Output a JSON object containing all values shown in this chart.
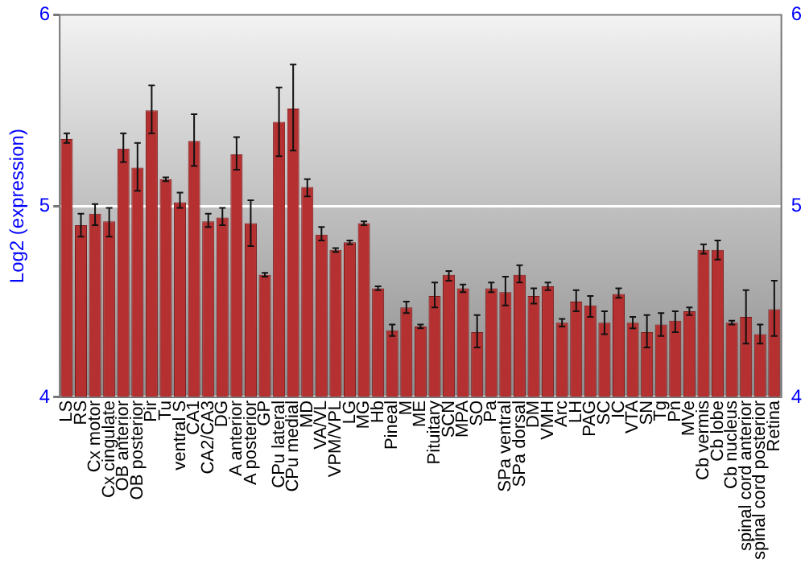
{
  "chart_data": {
    "type": "bar",
    "ylabel": "Log2 (expression)",
    "categories": [
      "LS",
      "RS",
      "Cx motor",
      "Cx cingulate",
      "OB anterior",
      "OB posterior",
      "Pir",
      "Tu",
      "ventral S",
      "CA1",
      "CA2/CA3",
      "DG",
      "A anterior",
      "A posterior",
      "GP",
      "CPu lateral",
      "CPu medial",
      "MD",
      "VA/VL",
      "VPM/VPL",
      "LG",
      "MG",
      "Hb",
      "Pineal",
      "M",
      "ME",
      "Pituitary",
      "SCN",
      "MPA",
      "SO",
      "Pa",
      "SPa ventral",
      "SPa dorsal",
      "DM",
      "VMH",
      "Arc",
      "LH",
      "PAG",
      "SC",
      "IC",
      "VTA",
      "SN",
      "Tg",
      "Pn",
      "MVe",
      "Cb vermis",
      "Cb lobe",
      "Cb nucleus",
      "spinal cord anterior",
      "spinal cord posterior",
      "Retina"
    ],
    "values": [
      5.35,
      4.9,
      4.96,
      4.92,
      5.3,
      5.2,
      5.5,
      5.14,
      5.02,
      5.34,
      4.92,
      4.94,
      5.27,
      4.91,
      4.64,
      5.44,
      5.51,
      5.1,
      4.85,
      4.77,
      4.81,
      4.91,
      4.57,
      4.35,
      4.47,
      4.37,
      4.53,
      4.64,
      4.57,
      4.34,
      4.57,
      4.55,
      4.64,
      4.53,
      4.58,
      4.39,
      4.5,
      4.48,
      4.39,
      4.54,
      4.39,
      4.34,
      4.38,
      4.4,
      4.45,
      4.77,
      4.77,
      4.39,
      4.42,
      4.33,
      4.46
    ],
    "errors": [
      [
        5.33,
        5.38
      ],
      [
        4.84,
        4.96
      ],
      [
        4.9,
        5.01
      ],
      [
        4.84,
        4.99
      ],
      [
        5.23,
        5.38
      ],
      [
        5.08,
        5.33
      ],
      [
        5.38,
        5.63
      ],
      [
        5.13,
        5.15
      ],
      [
        4.99,
        5.07
      ],
      [
        5.21,
        5.48
      ],
      [
        4.89,
        4.96
      ],
      [
        4.9,
        4.99
      ],
      [
        5.19,
        5.36
      ],
      [
        4.79,
        5.03
      ],
      [
        4.63,
        4.65
      ],
      [
        5.26,
        5.62
      ],
      [
        5.29,
        5.74
      ],
      [
        5.05,
        5.14
      ],
      [
        4.82,
        4.89
      ],
      [
        4.76,
        4.78
      ],
      [
        4.8,
        4.82
      ],
      [
        4.9,
        4.92
      ],
      [
        4.56,
        4.58
      ],
      [
        4.32,
        4.38
      ],
      [
        4.44,
        4.5
      ],
      [
        4.36,
        4.38
      ],
      [
        4.47,
        4.6
      ],
      [
        4.61,
        4.66
      ],
      [
        4.55,
        4.59
      ],
      [
        4.26,
        4.43
      ],
      [
        4.55,
        4.6
      ],
      [
        4.48,
        4.63
      ],
      [
        4.6,
        4.69
      ],
      [
        4.49,
        4.57
      ],
      [
        4.56,
        4.6
      ],
      [
        4.37,
        4.41
      ],
      [
        4.45,
        4.56
      ],
      [
        4.42,
        4.53
      ],
      [
        4.33,
        4.45
      ],
      [
        4.52,
        4.57
      ],
      [
        4.36,
        4.42
      ],
      [
        4.26,
        4.43
      ],
      [
        4.32,
        4.44
      ],
      [
        4.34,
        4.45
      ],
      [
        4.43,
        4.47
      ],
      [
        4.75,
        4.8
      ],
      [
        4.72,
        4.82
      ],
      [
        4.38,
        4.4
      ],
      [
        4.28,
        4.56
      ],
      [
        4.28,
        4.38
      ],
      [
        4.32,
        4.61
      ]
    ],
    "color": "#b53030",
    "ylim": [
      4,
      6
    ],
    "yticks": [
      4,
      5,
      6
    ],
    "y2lim": [
      4,
      6
    ],
    "y2ticks": [
      4,
      5,
      6
    ],
    "grid": "y",
    "legend": false
  }
}
